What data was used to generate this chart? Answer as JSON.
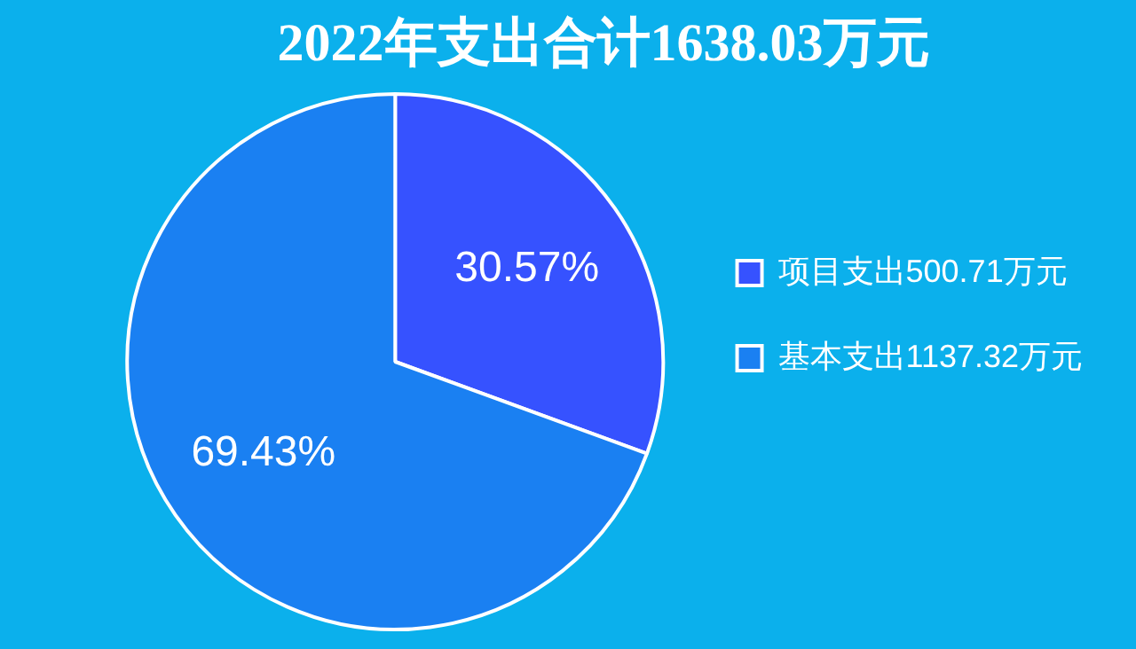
{
  "chart_data": {
    "type": "pie",
    "title": "2022年支出合计1638.03万元",
    "categories": [
      "项目支出500.71万元",
      "基本支出1137.32万元"
    ],
    "values": [
      30.57,
      69.43
    ],
    "value_labels": [
      "30.57%",
      "69.43%"
    ],
    "colors": [
      "#3652ff",
      "#1a80f2"
    ],
    "legend": "right"
  }
}
